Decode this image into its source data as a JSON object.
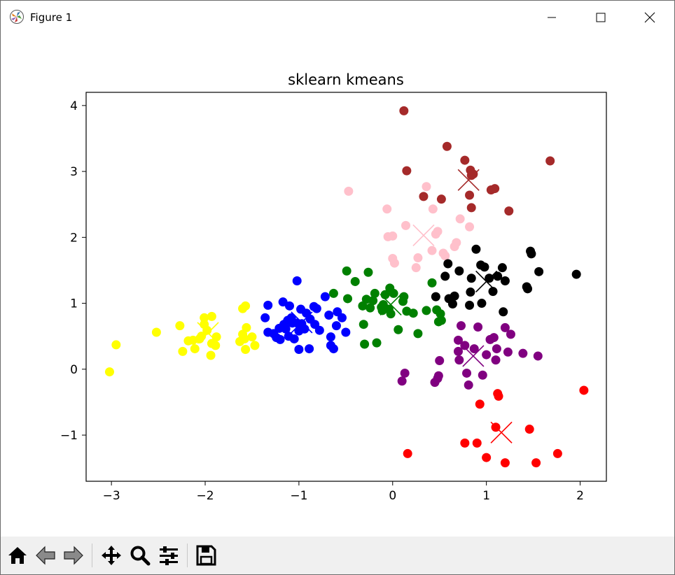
{
  "window": {
    "title": "Figure 1",
    "icons": [
      "matplotlib-logo-icon",
      "minimize-icon",
      "maximize-icon",
      "close-icon"
    ]
  },
  "toolbar": {
    "buttons": [
      "home-icon",
      "back-arrow-icon",
      "forward-arrow-icon",
      "pan-move-icon",
      "zoom-magnifier-icon",
      "configure-subplots-icon",
      "save-floppy-icon"
    ]
  },
  "chart_data": {
    "type": "scatter",
    "title": "sklearn kmeans",
    "xlabel": "",
    "ylabel": "",
    "xlim": [
      -3.27,
      2.28
    ],
    "ylim": [
      -1.7,
      4.2
    ],
    "xticks": [
      -3,
      -2,
      -1,
      0,
      1,
      2
    ],
    "xtick_labels": [
      "−3",
      "−2",
      "−1",
      "0",
      "1",
      "2"
    ],
    "yticks": [
      -1,
      0,
      1,
      2,
      3,
      4
    ],
    "ytick_labels": [
      "−1",
      "0",
      "1",
      "2",
      "3",
      "4"
    ],
    "grid": false,
    "legend": "none",
    "series": [
      {
        "color": "#ffff00",
        "points": [
          [
            -3.02,
            -0.04
          ],
          [
            -2.95,
            0.37
          ],
          [
            -2.52,
            0.56
          ],
          [
            -2.27,
            0.66
          ],
          [
            -2.24,
            0.27
          ],
          [
            -2.18,
            0.43
          ],
          [
            -2.13,
            0.44
          ],
          [
            -2.11,
            0.31
          ],
          [
            -2.06,
            0.46
          ],
          [
            -2.04,
            0.5
          ],
          [
            -2.01,
            0.78
          ],
          [
            -2.01,
            0.68
          ],
          [
            -1.98,
            0.59
          ],
          [
            -1.93,
            0.8
          ],
          [
            -1.94,
            0.21
          ],
          [
            -1.93,
            0.39
          ],
          [
            -1.89,
            0.36
          ],
          [
            -1.88,
            0.49
          ],
          [
            -1.63,
            0.42
          ],
          [
            -1.6,
            0.53
          ],
          [
            -1.6,
            0.92
          ],
          [
            -1.58,
            0.46
          ],
          [
            -1.57,
            0.96
          ],
          [
            -1.57,
            0.3
          ],
          [
            -1.56,
            0.63
          ],
          [
            -1.5,
            0.49
          ],
          [
            -1.47,
            0.36
          ]
        ],
        "centroid": [
          -1.97,
          0.55
        ]
      },
      {
        "color": "#0000ff",
        "points": [
          [
            -1.36,
            0.78
          ],
          [
            -1.33,
            0.97
          ],
          [
            -1.33,
            0.56
          ],
          [
            -1.27,
            0.54
          ],
          [
            -1.24,
            0.48
          ],
          [
            -1.21,
            0.62
          ],
          [
            -1.2,
            0.45
          ],
          [
            -1.17,
            1.02
          ],
          [
            -1.16,
            0.68
          ],
          [
            -1.14,
            0.61
          ],
          [
            -1.12,
            0.74
          ],
          [
            -1.11,
            0.5
          ],
          [
            -1.1,
            0.96
          ],
          [
            -1.08,
            0.78
          ],
          [
            -1.07,
            0.7
          ],
          [
            -1.05,
            0.46
          ],
          [
            -1.02,
            1.34
          ],
          [
            -1.02,
            0.7
          ],
          [
            -1.0,
            0.3
          ],
          [
            -1.0,
            0.58
          ],
          [
            -0.98,
            0.91
          ],
          [
            -0.97,
            0.69
          ],
          [
            -0.94,
            0.61
          ],
          [
            -0.92,
            0.85
          ],
          [
            -0.89,
            0.31
          ],
          [
            -0.88,
            0.76
          ],
          [
            -0.84,
            0.95
          ],
          [
            -0.83,
            0.68
          ],
          [
            -0.81,
            0.92
          ],
          [
            -0.78,
            0.59
          ],
          [
            -0.72,
            1.1
          ],
          [
            -0.68,
            0.82
          ],
          [
            -0.66,
            0.49
          ],
          [
            -0.66,
            0.36
          ],
          [
            -0.63,
            0.31
          ],
          [
            -0.6,
            0.66
          ],
          [
            -0.59,
            0.87
          ],
          [
            -0.54,
            0.78
          ],
          [
            -0.5,
            0.56
          ]
        ],
        "centroid": [
          -0.97,
          0.71
        ]
      },
      {
        "color": "#008000",
        "points": [
          [
            -0.63,
            1.15
          ],
          [
            -0.49,
            1.49
          ],
          [
            -0.48,
            1.07
          ],
          [
            -0.4,
            1.33
          ],
          [
            -0.32,
            0.96
          ],
          [
            -0.31,
            0.68
          ],
          [
            -0.3,
            0.38
          ],
          [
            -0.28,
            1.06
          ],
          [
            -0.26,
            1.47
          ],
          [
            -0.24,
            0.93
          ],
          [
            -0.21,
            1.04
          ],
          [
            -0.19,
            1.15
          ],
          [
            -0.17,
            0.4
          ],
          [
            -0.12,
            0.94
          ],
          [
            -0.11,
            0.89
          ],
          [
            -0.1,
            0.98
          ],
          [
            -0.08,
            1.13
          ],
          [
            -0.04,
            0.91
          ],
          [
            -0.03,
            1.23
          ],
          [
            -0.02,
            0.84
          ],
          [
            0.01,
            1.15
          ],
          [
            0.06,
            0.6
          ],
          [
            0.11,
            1.03
          ],
          [
            0.12,
            1.1
          ],
          [
            0.15,
            0.88
          ],
          [
            0.22,
            0.85
          ],
          [
            0.27,
            0.54
          ],
          [
            0.36,
            0.89
          ],
          [
            0.42,
            1.31
          ],
          [
            0.47,
            0.9
          ],
          [
            0.49,
            0.72
          ],
          [
            0.51,
            0.84
          ],
          [
            0.52,
            0.74
          ]
        ],
        "centroid": [
          -0.02,
          0.98
        ]
      },
      {
        "color": "#ffc0cb",
        "points": [
          [
            -0.47,
            2.7
          ],
          [
            -0.06,
            2.43
          ],
          [
            -0.05,
            2.01
          ],
          [
            0.0,
            2.02
          ],
          [
            0.0,
            1.68
          ],
          [
            0.02,
            1.61
          ],
          [
            0.14,
            2.18
          ],
          [
            0.25,
            1.54
          ],
          [
            0.27,
            1.69
          ],
          [
            0.36,
            2.77
          ],
          [
            0.42,
            1.8
          ],
          [
            0.43,
            2.43
          ],
          [
            0.46,
            2.05
          ],
          [
            0.48,
            2.09
          ],
          [
            0.54,
            1.76
          ],
          [
            0.56,
            1.72
          ],
          [
            0.66,
            1.86
          ],
          [
            0.68,
            1.92
          ],
          [
            0.72,
            2.28
          ],
          [
            0.82,
            2.16
          ]
        ],
        "centroid": [
          0.33,
          2.03
        ]
      },
      {
        "color": "#a52a2a",
        "points": [
          [
            0.12,
            3.92
          ],
          [
            0.15,
            3.01
          ],
          [
            0.33,
            2.62
          ],
          [
            0.52,
            2.58
          ],
          [
            0.58,
            3.38
          ],
          [
            0.77,
            3.17
          ],
          [
            0.82,
            2.64
          ],
          [
            0.83,
            3.02
          ],
          [
            0.84,
            2.94
          ],
          [
            0.84,
            2.45
          ],
          [
            0.86,
            2.96
          ],
          [
            1.05,
            2.72
          ],
          [
            1.09,
            2.74
          ],
          [
            1.24,
            2.4
          ],
          [
            1.68,
            3.16
          ]
        ],
        "centroid": [
          0.81,
          2.87
        ]
      },
      {
        "color": "#000000",
        "points": [
          [
            0.46,
            1.1
          ],
          [
            0.56,
            1.41
          ],
          [
            0.59,
            1.6
          ],
          [
            0.6,
            1.07
          ],
          [
            0.64,
            0.99
          ],
          [
            0.66,
            1.11
          ],
          [
            0.71,
            1.49
          ],
          [
            0.82,
            0.97
          ],
          [
            0.83,
            1.17
          ],
          [
            0.84,
            1.38
          ],
          [
            0.89,
            1.82
          ],
          [
            0.94,
            1.58
          ],
          [
            0.95,
            1.0
          ],
          [
            0.98,
            1.55
          ],
          [
            1.03,
            1.38
          ],
          [
            1.07,
            1.18
          ],
          [
            1.12,
            1.41
          ],
          [
            1.17,
            1.54
          ],
          [
            1.18,
            0.87
          ],
          [
            1.2,
            1.34
          ],
          [
            1.43,
            1.25
          ],
          [
            1.44,
            1.22
          ],
          [
            1.47,
            1.79
          ],
          [
            1.48,
            1.75
          ],
          [
            1.56,
            1.48
          ],
          [
            1.96,
            1.44
          ]
        ],
        "centroid": [
          1.0,
          1.33
        ]
      },
      {
        "color": "#800080",
        "points": [
          [
            0.1,
            -0.18
          ],
          [
            0.13,
            -0.06
          ],
          [
            0.45,
            -0.2
          ],
          [
            0.48,
            -0.14
          ],
          [
            0.49,
            -0.1
          ],
          [
            0.5,
            0.13
          ],
          [
            0.7,
            0.44
          ],
          [
            0.7,
            0.27
          ],
          [
            0.71,
            0.14
          ],
          [
            0.73,
            0.66
          ],
          [
            0.77,
            0.36
          ],
          [
            0.79,
            -0.06
          ],
          [
            0.81,
            -0.24
          ],
          [
            0.87,
            0.31
          ],
          [
            0.91,
            0.64
          ],
          [
            0.96,
            -0.09
          ],
          [
            1.0,
            0.22
          ],
          [
            1.04,
            0.45
          ],
          [
            1.08,
            0.48
          ],
          [
            1.1,
            0.14
          ],
          [
            1.11,
            0.31
          ],
          [
            1.2,
            0.63
          ],
          [
            1.23,
            0.26
          ],
          [
            1.26,
            0.53
          ],
          [
            1.39,
            0.24
          ],
          [
            1.55,
            0.2
          ]
        ],
        "centroid": [
          0.86,
          0.2
        ]
      },
      {
        "color": "#ff0000",
        "points": [
          [
            0.16,
            -1.28
          ],
          [
            0.93,
            -0.53
          ],
          [
            0.77,
            -1.12
          ],
          [
            0.9,
            -1.12
          ],
          [
            1.0,
            -1.34
          ],
          [
            1.1,
            -0.88
          ],
          [
            1.12,
            -0.37
          ],
          [
            1.13,
            -0.41
          ],
          [
            1.2,
            -1.42
          ],
          [
            1.46,
            -0.91
          ],
          [
            1.53,
            -1.42
          ],
          [
            1.76,
            -1.28
          ],
          [
            2.04,
            -0.32
          ]
        ],
        "centroid": [
          1.16,
          -0.96
        ]
      }
    ]
  }
}
